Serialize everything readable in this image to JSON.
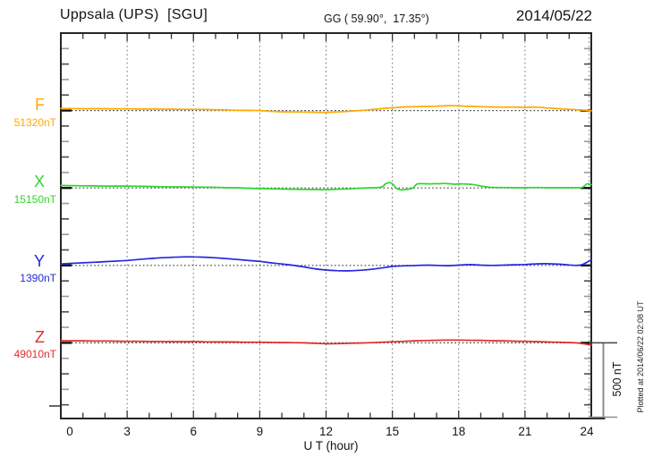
{
  "header": {
    "title": "Uppsala (UPS)  [SGU]",
    "coords": "GG ( 59.90°,  17.35°)",
    "date": "2014/05/22"
  },
  "axis": {
    "x_label": "U T (hour)",
    "x_ticks": [
      "0",
      "3",
      "6",
      "9",
      "12",
      "15",
      "18",
      "21",
      "24"
    ]
  },
  "scale_bar": {
    "label": "500 nT",
    "nT": 500
  },
  "footer_note": "Plotted at 2014/06/22 02:08 UT",
  "chart_data": {
    "type": "line",
    "title": "Magnetogram Uppsala (UPS) [SGU] 2014/05/22",
    "xlabel": "U T (hour)",
    "x_range": [
      0,
      24
    ],
    "x_ticks": [
      0,
      3,
      6,
      9,
      12,
      15,
      18,
      21,
      24
    ],
    "grid": "dotted vertical lines every 3 hours; dotted horizontal baseline per component",
    "legend_position": "left margin, one colored label per trace",
    "scale_bar_nT": 500,
    "series": [
      {
        "name": "F",
        "label": "F",
        "value_label": "51320nT",
        "baseline_nT": 51320,
        "color": "#FFAA00",
        "points_hour_offset_nT": [
          [
            0,
            13
          ],
          [
            0.5,
            13
          ],
          [
            1,
            12
          ],
          [
            1.5,
            12
          ],
          [
            2,
            12
          ],
          [
            2.5,
            11
          ],
          [
            3,
            11
          ],
          [
            3.5,
            10
          ],
          [
            4,
            10
          ],
          [
            4.5,
            9
          ],
          [
            5,
            9
          ],
          [
            5.5,
            8
          ],
          [
            6,
            8
          ],
          [
            6.5,
            7
          ],
          [
            7,
            5
          ],
          [
            7.5,
            4
          ],
          [
            8,
            2
          ],
          [
            8.5,
            1
          ],
          [
            9,
            0
          ],
          [
            9.5,
            -5
          ],
          [
            10,
            -8
          ],
          [
            10.5,
            -9
          ],
          [
            11,
            -10
          ],
          [
            11.5,
            -11
          ],
          [
            12,
            -12
          ],
          [
            12.5,
            -9
          ],
          [
            13,
            -5
          ],
          [
            13.5,
            0
          ],
          [
            14,
            5
          ],
          [
            14.5,
            12
          ],
          [
            15,
            18
          ],
          [
            15.5,
            23
          ],
          [
            16,
            25
          ],
          [
            16.5,
            26
          ],
          [
            17,
            28
          ],
          [
            17.3,
            30
          ],
          [
            17.6,
            32
          ],
          [
            18,
            30
          ],
          [
            18.5,
            27
          ],
          [
            19,
            25
          ],
          [
            19.5,
            23
          ],
          [
            20,
            22
          ],
          [
            20.5,
            22
          ],
          [
            21,
            21
          ],
          [
            21.5,
            22
          ],
          [
            22,
            17
          ],
          [
            22.5,
            12
          ],
          [
            23,
            8
          ],
          [
            23.5,
            4
          ],
          [
            23.8,
            1
          ],
          [
            24,
            -2
          ]
        ]
      },
      {
        "name": "X",
        "label": "X",
        "value_label": "15150nT",
        "baseline_nT": 15150,
        "color": "#2FD52F",
        "points_hour_offset_nT": [
          [
            0,
            16
          ],
          [
            0.5,
            15
          ],
          [
            1,
            14
          ],
          [
            1.5,
            13
          ],
          [
            2,
            12
          ],
          [
            2.5,
            12
          ],
          [
            3,
            12
          ],
          [
            3.5,
            11
          ],
          [
            4,
            10
          ],
          [
            4.5,
            8
          ],
          [
            5,
            7
          ],
          [
            5.5,
            7
          ],
          [
            6,
            6
          ],
          [
            6.5,
            5
          ],
          [
            7,
            4
          ],
          [
            7.5,
            2
          ],
          [
            8,
            1
          ],
          [
            8.5,
            -2
          ],
          [
            9,
            -4
          ],
          [
            9.5,
            -5
          ],
          [
            10,
            -7
          ],
          [
            10.5,
            -8
          ],
          [
            11,
            -9
          ],
          [
            11.5,
            -10
          ],
          [
            12,
            -11
          ],
          [
            12.5,
            -8
          ],
          [
            13,
            -6
          ],
          [
            13.5,
            -2
          ],
          [
            13.8,
            0
          ],
          [
            14,
            1
          ],
          [
            14.3,
            2
          ],
          [
            14.55,
            8
          ],
          [
            14.7,
            28
          ],
          [
            14.9,
            34
          ],
          [
            15.05,
            20
          ],
          [
            15.2,
            -4
          ],
          [
            15.4,
            -12
          ],
          [
            15.6,
            -10
          ],
          [
            15.8,
            -6
          ],
          [
            15.95,
            2
          ],
          [
            16.1,
            24
          ],
          [
            16.3,
            28
          ],
          [
            16.5,
            27
          ],
          [
            16.7,
            26
          ],
          [
            16.9,
            28
          ],
          [
            17.1,
            27
          ],
          [
            17.3,
            29
          ],
          [
            17.5,
            28
          ],
          [
            17.7,
            26
          ],
          [
            17.85,
            24
          ],
          [
            18,
            27
          ],
          [
            18.2,
            26
          ],
          [
            18.4,
            25
          ],
          [
            18.6,
            23
          ],
          [
            18.8,
            18
          ],
          [
            19,
            12
          ],
          [
            19.2,
            8
          ],
          [
            19.4,
            5
          ],
          [
            19.7,
            3
          ],
          [
            20,
            3
          ],
          [
            20.5,
            2
          ],
          [
            21,
            2
          ],
          [
            21.5,
            3
          ],
          [
            22,
            2
          ],
          [
            22.5,
            2
          ],
          [
            23,
            2
          ],
          [
            23.3,
            2
          ],
          [
            23.6,
            4
          ],
          [
            23.8,
            26
          ],
          [
            24,
            22
          ]
        ]
      },
      {
        "name": "Y",
        "label": "Y",
        "value_label": "1390nT",
        "baseline_nT": 1390,
        "color": "#2626DE",
        "points_hour_offset_nT": [
          [
            0,
            9
          ],
          [
            0.5,
            13
          ],
          [
            1,
            17
          ],
          [
            1.5,
            20
          ],
          [
            2,
            24
          ],
          [
            2.5,
            28
          ],
          [
            3,
            32
          ],
          [
            3.5,
            38
          ],
          [
            4,
            44
          ],
          [
            4.5,
            49
          ],
          [
            5,
            52
          ],
          [
            5.5,
            55
          ],
          [
            6,
            55
          ],
          [
            6.5,
            53
          ],
          [
            7,
            49
          ],
          [
            7.5,
            44
          ],
          [
            8,
            38
          ],
          [
            8.5,
            32
          ],
          [
            9,
            26
          ],
          [
            9.5,
            17
          ],
          [
            10,
            9
          ],
          [
            10.5,
            1
          ],
          [
            11,
            -10
          ],
          [
            11.5,
            -22
          ],
          [
            12,
            -30
          ],
          [
            12.5,
            -34
          ],
          [
            13,
            -35
          ],
          [
            13.5,
            -32
          ],
          [
            14,
            -26
          ],
          [
            14.5,
            -17
          ],
          [
            15,
            -7
          ],
          [
            15.5,
            -3
          ],
          [
            16,
            -1
          ],
          [
            16.5,
            2
          ],
          [
            17,
            0
          ],
          [
            17.5,
            -2
          ],
          [
            18,
            2
          ],
          [
            18.5,
            5
          ],
          [
            19,
            2
          ],
          [
            19.5,
            0
          ],
          [
            20,
            2
          ],
          [
            20.5,
            4
          ],
          [
            21,
            6
          ],
          [
            21.5,
            10
          ],
          [
            22,
            11
          ],
          [
            22.5,
            8
          ],
          [
            23,
            3
          ],
          [
            23.3,
            0
          ],
          [
            23.6,
            6
          ],
          [
            24,
            36
          ]
        ]
      },
      {
        "name": "Z",
        "label": "Z",
        "value_label": "49010nT",
        "baseline_nT": 49010,
        "color": "#E42A2A",
        "points_hour_offset_nT": [
          [
            0,
            14
          ],
          [
            0.5,
            13
          ],
          [
            1,
            13
          ],
          [
            1.5,
            12
          ],
          [
            2,
            12
          ],
          [
            2.5,
            11
          ],
          [
            3,
            10
          ],
          [
            3.5,
            10
          ],
          [
            4,
            9
          ],
          [
            4.5,
            9
          ],
          [
            5,
            8
          ],
          [
            5.5,
            8
          ],
          [
            6,
            8
          ],
          [
            6.5,
            7
          ],
          [
            7,
            6
          ],
          [
            7.5,
            6
          ],
          [
            8,
            5
          ],
          [
            8.5,
            4
          ],
          [
            9,
            4
          ],
          [
            9.5,
            3
          ],
          [
            10,
            2
          ],
          [
            10.5,
            1
          ],
          [
            11,
            0
          ],
          [
            11.5,
            -3
          ],
          [
            12,
            -6
          ],
          [
            12.5,
            -5
          ],
          [
            13,
            -3
          ],
          [
            13.5,
            -1
          ],
          [
            14,
            1
          ],
          [
            14.5,
            4
          ],
          [
            15,
            7
          ],
          [
            15.5,
            10
          ],
          [
            16,
            13
          ],
          [
            16.5,
            15
          ],
          [
            17,
            17
          ],
          [
            17.5,
            18
          ],
          [
            18,
            18
          ],
          [
            18.5,
            17
          ],
          [
            19,
            16
          ],
          [
            19.5,
            14
          ],
          [
            20,
            13
          ],
          [
            20.5,
            11
          ],
          [
            21,
            10
          ],
          [
            21.5,
            8
          ],
          [
            22,
            6
          ],
          [
            22.5,
            4
          ],
          [
            23,
            2
          ],
          [
            23.3,
            0
          ],
          [
            23.6,
            -5
          ],
          [
            24,
            -15
          ]
        ]
      }
    ]
  }
}
